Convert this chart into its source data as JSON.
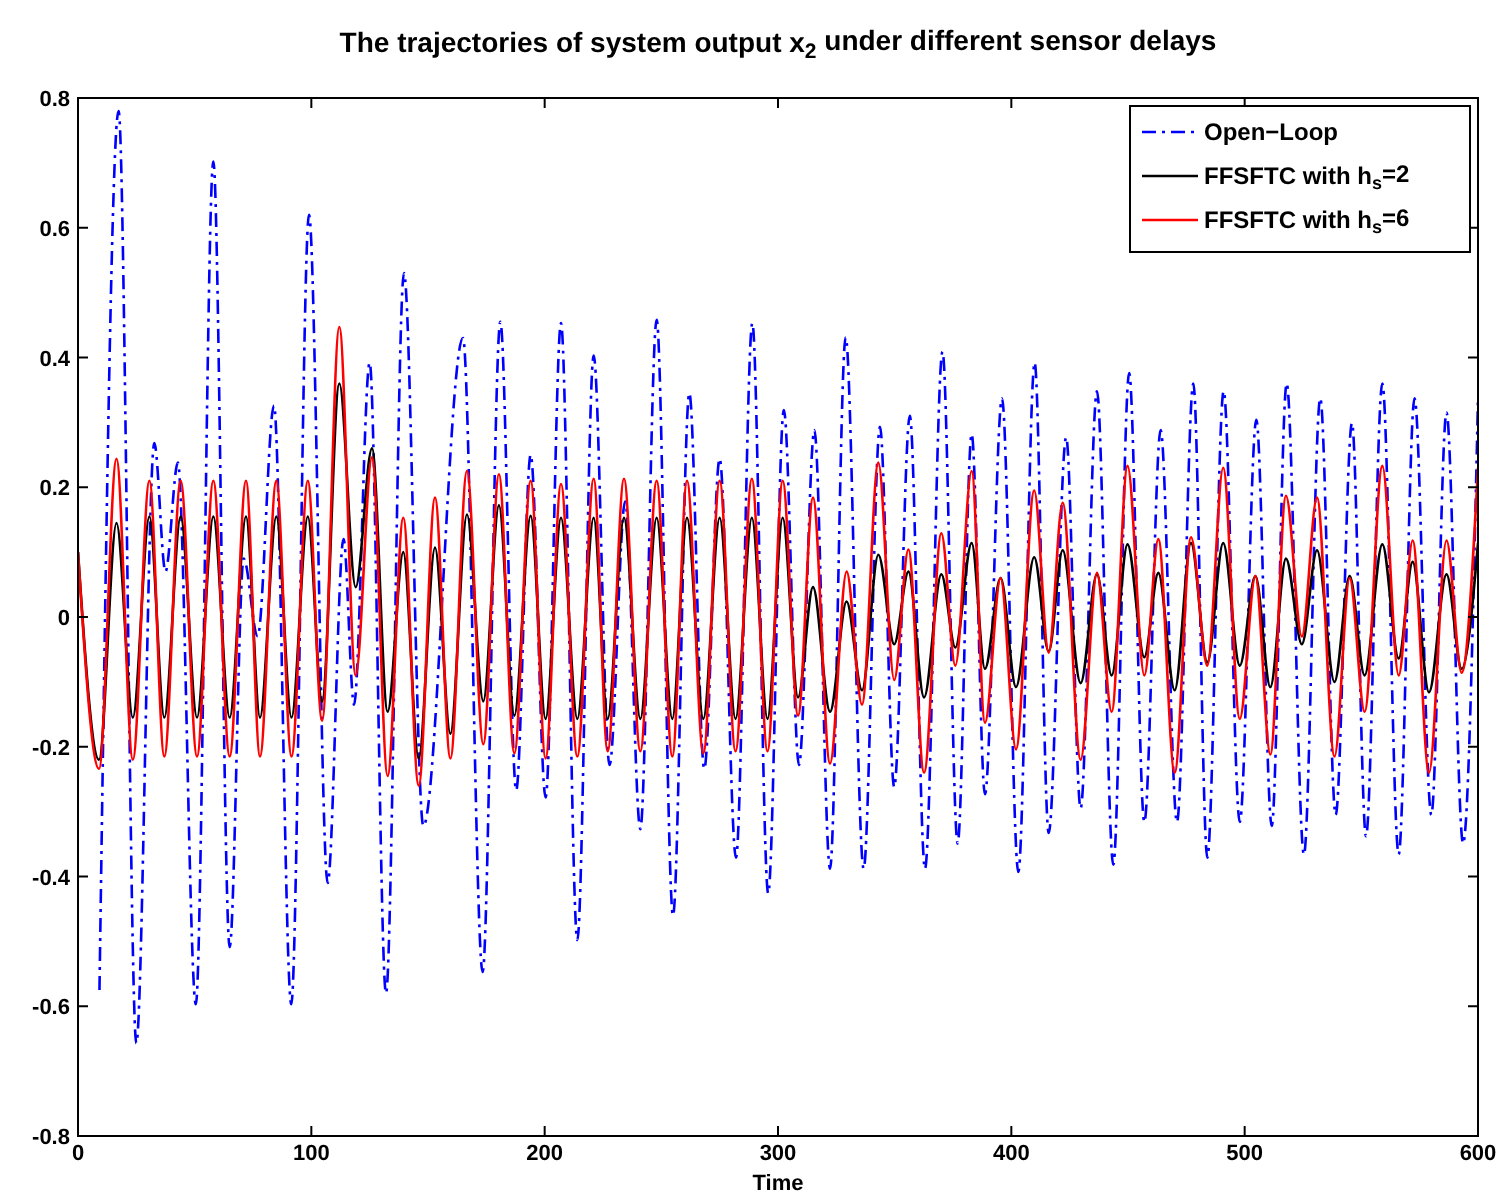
{
  "chart_data": {
    "type": "line",
    "title": "The trajectories of system output x$_{2}$ under different sensor delays",
    "xlabel": "Time",
    "xlim": [
      0,
      600
    ],
    "xticks": [
      0,
      100,
      200,
      300,
      400,
      500,
      600
    ],
    "ylim": [
      -0.8,
      0.8
    ],
    "yticks": [
      -0.8,
      -0.6,
      -0.4,
      -0.2,
      0,
      0.2,
      0.4,
      0.6,
      0.8
    ],
    "grid": false,
    "legend": "top right",
    "marker": "none",
    "x": [
      0,
      9,
      16.5,
      23.5,
      30.6,
      37,
      44,
      51,
      58,
      65,
      72,
      78,
      85,
      91.5,
      98.5,
      104.6,
      112,
      119,
      126,
      132.7,
      139.4,
      146,
      153,
      159.6,
      166.7,
      173.7,
      180.4,
      187,
      194,
      200.4,
      207,
      214,
      221,
      227,
      234,
      241,
      248,
      254.7,
      261,
      268,
      275,
      281.8,
      288.8,
      295.5,
      302,
      308.6,
      315,
      322.3,
      329.4,
      336,
      343,
      349.8,
      355.9,
      362.6,
      370,
      376,
      383,
      388.7,
      395.4,
      402,
      409.8,
      416,
      422,
      429.7,
      436.7,
      443,
      449.8,
      457,
      463,
      470,
      477,
      484,
      490.8,
      497.9,
      504.6,
      511,
      517.7,
      524.5,
      531,
      538.5,
      545,
      551.4,
      559,
      566,
      572,
      579,
      586.5,
      593,
      600
    ],
    "series": [
      {
        "name": "Open−Loop",
        "color": "#0000ff",
        "line_style": "dashed",
        "x": [
          9.2,
          17.4,
          25,
          32.7,
          37.5,
          42.8,
          50.5,
          58,
          65,
          71,
          77,
          84,
          91.4,
          99,
          107,
          113.8,
          118.3,
          125,
          132,
          139.7,
          148,
          165,
          173.4,
          181,
          187.8,
          194,
          200.4,
          207,
          214,
          221,
          227.8,
          234.5,
          241,
          248,
          255,
          262,
          268.4,
          275,
          282,
          289,
          295.8,
          302.5,
          309,
          315.6,
          322.3,
          329,
          336.7,
          343.7,
          349.8,
          356.5,
          363,
          370.5,
          377,
          383,
          388.7,
          396,
          403,
          410,
          416,
          423.5,
          429.7,
          436.7,
          443.7,
          450.5,
          457,
          464,
          471,
          478,
          484,
          491,
          497.9,
          505,
          511.6,
          518,
          525.4,
          532.4,
          539,
          546,
          552,
          559,
          566,
          572.8,
          580,
          586.5,
          593.6,
          600
        ],
        "values": [
          -0.575,
          0.78,
          -0.657,
          0.268,
          0.07,
          0.238,
          -0.597,
          0.702,
          -0.509,
          0.09,
          -0.03,
          0.326,
          -0.597,
          0.62,
          -0.41,
          0.12,
          -0.135,
          0.392,
          -0.58,
          0.53,
          -0.322,
          0.43,
          -0.547,
          0.455,
          -0.267,
          0.25,
          -0.278,
          0.453,
          -0.498,
          0.403,
          -0.228,
          0.178,
          -0.327,
          0.458,
          -0.46,
          0.345,
          -0.234,
          0.244,
          -0.371,
          0.453,
          -0.426,
          0.319,
          -0.228,
          0.288,
          -0.388,
          0.431,
          -0.388,
          0.293,
          -0.262,
          0.31,
          -0.388,
          0.409,
          -0.349,
          0.282,
          -0.273,
          0.337,
          -0.393,
          0.392,
          -0.333,
          0.277,
          -0.295,
          0.348,
          -0.382,
          0.376,
          -0.316,
          0.288,
          -0.316,
          0.36,
          -0.371,
          0.348,
          -0.316,
          0.304,
          -0.322,
          0.36,
          -0.366,
          0.337,
          -0.305,
          0.299,
          -0.338,
          0.36,
          -0.366,
          0.337,
          -0.305,
          0.315,
          -0.349,
          0.337
        ]
      },
      {
        "name": "FFSFTC with h$_{s}$=2",
        "color": "#000000",
        "line_style": "solid",
        "values": [
          0.1,
          -0.22,
          0.145,
          -0.155,
          0.155,
          -0.155,
          0.155,
          -0.155,
          0.155,
          -0.155,
          0.155,
          -0.155,
          0.155,
          -0.155,
          0.155,
          -0.13,
          0.36,
          0.046,
          0.26,
          -0.146,
          0.1,
          -0.218,
          0.107,
          -0.18,
          0.158,
          -0.13,
          0.172,
          -0.152,
          0.156,
          -0.157,
          0.153,
          -0.157,
          0.153,
          -0.157,
          0.153,
          -0.157,
          0.153,
          -0.157,
          0.153,
          -0.157,
          0.153,
          -0.157,
          0.153,
          -0.157,
          0.153,
          -0.124,
          0.046,
          -0.146,
          0.024,
          -0.113,
          0.096,
          -0.042,
          0.07,
          -0.124,
          0.066,
          -0.047,
          0.114,
          -0.08,
          0.06,
          -0.108,
          0.092,
          -0.053,
          0.103,
          -0.102,
          0.066,
          -0.09,
          0.112,
          -0.062,
          0.068,
          -0.113,
          0.114,
          -0.07,
          0.114,
          -0.075,
          0.063,
          -0.108,
          0.09,
          -0.042,
          0.103,
          -0.1,
          0.063,
          -0.09,
          0.112,
          -0.064,
          0.085,
          -0.116,
          0.066,
          -0.08,
          0.114
        ]
      },
      {
        "name": "FFSFTC with h$_{s}$=6",
        "color": "#ff0000",
        "line_style": "solid",
        "values": [
          0.1,
          -0.234,
          0.244,
          -0.22,
          0.21,
          -0.215,
          0.21,
          -0.215,
          0.21,
          -0.215,
          0.21,
          -0.215,
          0.21,
          -0.215,
          0.21,
          -0.16,
          0.447,
          -0.09,
          0.246,
          -0.245,
          0.153,
          -0.26,
          0.184,
          -0.218,
          0.225,
          -0.196,
          0.22,
          -0.21,
          0.21,
          -0.218,
          0.205,
          -0.215,
          0.213,
          -0.207,
          0.213,
          -0.207,
          0.21,
          -0.215,
          0.21,
          -0.21,
          0.21,
          -0.207,
          0.213,
          -0.207,
          0.21,
          -0.152,
          0.184,
          -0.226,
          0.07,
          -0.135,
          0.238,
          -0.097,
          0.104,
          -0.24,
          0.129,
          -0.075,
          0.225,
          -0.163,
          0.06,
          -0.204,
          0.195,
          -0.055,
          0.176,
          -0.22,
          0.068,
          -0.146,
          0.233,
          -0.09,
          0.12,
          -0.24,
          0.123,
          -0.075,
          0.23,
          -0.157,
          0.063,
          -0.212,
          0.187,
          -0.03,
          0.184,
          -0.215,
          0.06,
          -0.146,
          0.233,
          -0.09,
          0.118,
          -0.24,
          0.118,
          -0.086,
          0.23
        ]
      }
    ]
  }
}
